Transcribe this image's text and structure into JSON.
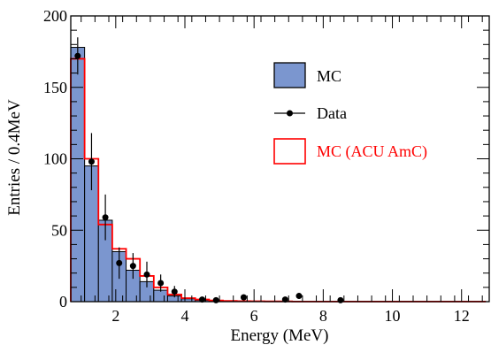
{
  "chart_data": {
    "type": "bar",
    "xlabel": "Energy (MeV)",
    "ylabel": "Entries / 0.4MeV",
    "xlim": [
      0.7,
      12.8
    ],
    "ylim": [
      0,
      200
    ],
    "x_ticks": [
      2,
      4,
      6,
      8,
      10,
      12
    ],
    "y_ticks": [
      0,
      50,
      100,
      150,
      200
    ],
    "grid": false,
    "legend_position": "top-right",
    "bin_edges": [
      0.7,
      1.1,
      1.5,
      1.9,
      2.3,
      2.7,
      3.1,
      3.5,
      3.9,
      4.3,
      4.7,
      5.1,
      5.5,
      5.9,
      6.3,
      6.7,
      7.1,
      7.5,
      7.9,
      8.3,
      8.7,
      9.1,
      9.5,
      9.9,
      10.3,
      10.7,
      11.1,
      11.5,
      11.9,
      12.3,
      12.7
    ],
    "series": [
      {
        "name": "MC",
        "kind": "filled-histogram",
        "color": "#7b96cf",
        "edge_color": "#000000",
        "values": [
          178,
          95,
          57,
          35,
          22,
          14,
          8,
          4,
          2,
          1,
          0.5,
          0.4,
          0.3,
          0.3,
          0.2,
          0.2,
          0.1,
          0.1,
          0.1,
          0.1,
          0.1,
          0.1,
          0.1,
          0.1,
          0.1,
          0.1,
          0.1,
          0.1,
          0.1,
          0.1
        ]
      },
      {
        "name": "MC (ACU AmC)",
        "kind": "step-histogram",
        "color": "#ff0000",
        "values": [
          170,
          100,
          54,
          37,
          30,
          18,
          10,
          5,
          2.5,
          1.5,
          0.8,
          0.5,
          0.4,
          0.3,
          0.2,
          0.2,
          0.1,
          0.1,
          0.1,
          0.1,
          0.1,
          0.1,
          0.1,
          0.1,
          0.1,
          0.1,
          0.1,
          0.1,
          0.1,
          0.1
        ]
      },
      {
        "name": "Data",
        "kind": "points-with-errors",
        "color": "#000000",
        "points": [
          {
            "x": 0.9,
            "y": 172,
            "err": 13
          },
          {
            "x": 1.3,
            "y": 98,
            "err": 20
          },
          {
            "x": 1.7,
            "y": 59,
            "err": 16
          },
          {
            "x": 2.1,
            "y": 27,
            "err": 11
          },
          {
            "x": 2.5,
            "y": 25,
            "err": 9
          },
          {
            "x": 2.9,
            "y": 19,
            "err": 9
          },
          {
            "x": 3.3,
            "y": 13,
            "err": 6
          },
          {
            "x": 3.7,
            "y": 7,
            "err": 4
          },
          {
            "x": 4.5,
            "y": 1.5,
            "err": 1.5
          },
          {
            "x": 4.9,
            "y": 1,
            "err": 1
          },
          {
            "x": 5.7,
            "y": 3,
            "err": 2
          },
          {
            "x": 6.9,
            "y": 1.5,
            "err": 1.5
          },
          {
            "x": 7.3,
            "y": 4,
            "err": 2
          },
          {
            "x": 8.5,
            "y": 1,
            "err": 1
          }
        ]
      }
    ]
  }
}
